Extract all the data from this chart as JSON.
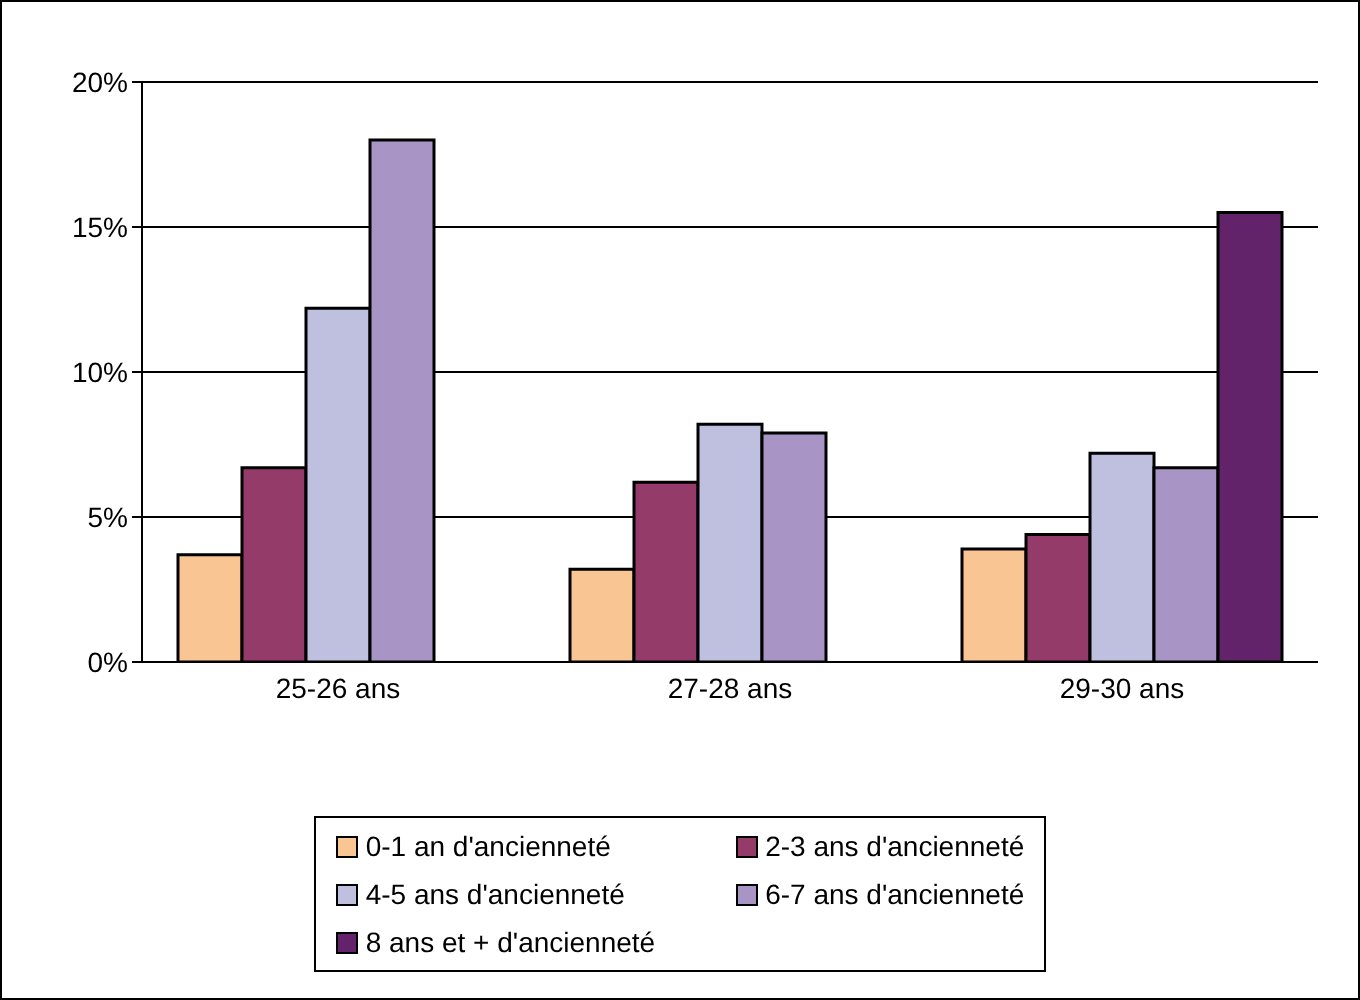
{
  "chart_data": {
    "type": "bar",
    "categories": [
      "25-26 ans",
      "27-28 ans",
      "29-30 ans"
    ],
    "series": [
      {
        "name": "0-1 an d'ancienneté",
        "color": "#f9c693",
        "values": [
          3.7,
          3.2,
          3.9
        ]
      },
      {
        "name": "2-3 ans d'ancienneté",
        "color": "#953b6a",
        "values": [
          6.7,
          6.2,
          4.4
        ]
      },
      {
        "name": "4-5 ans d'ancienneté",
        "color": "#bfbfdf",
        "values": [
          12.2,
          8.2,
          7.2
        ]
      },
      {
        "name": "6-7 ans d'ancienneté",
        "color": "#a994c6",
        "values": [
          18.0,
          7.9,
          6.7
        ]
      },
      {
        "name": "8 ans et + d'ancienneté",
        "color": "#62236a",
        "values": [
          null,
          null,
          15.5
        ]
      }
    ],
    "ylim": [
      0,
      20
    ],
    "yticks": [
      {
        "value": 0,
        "label": "0%"
      },
      {
        "value": 5,
        "label": "5%"
      },
      {
        "value": 10,
        "label": "10%"
      },
      {
        "value": 15,
        "label": "15%"
      },
      {
        "value": 20,
        "label": "20%"
      }
    ],
    "grid": "y",
    "legend": "bottom"
  }
}
